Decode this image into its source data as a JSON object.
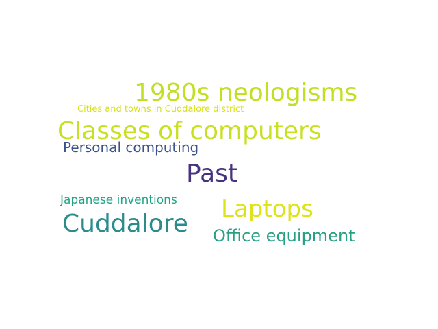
{
  "words": [
    {
      "text": "1980s neologisms",
      "color": "#c2df23"
    },
    {
      "text": "Cities and towns in Cuddalore district",
      "color": "#d8e219"
    },
    {
      "text": "Classes of computers",
      "color": "#c8e020"
    },
    {
      "text": "Personal computing",
      "color": "#3b528b"
    },
    {
      "text": "Past",
      "color": "#46327e"
    },
    {
      "text": "Japanese inventions",
      "color": "#20a486"
    },
    {
      "text": "Laptops",
      "color": "#dde318"
    },
    {
      "text": "Cuddalore",
      "color": "#2c8c8c"
    },
    {
      "text": "Office equipment",
      "color": "#29a085"
    }
  ]
}
